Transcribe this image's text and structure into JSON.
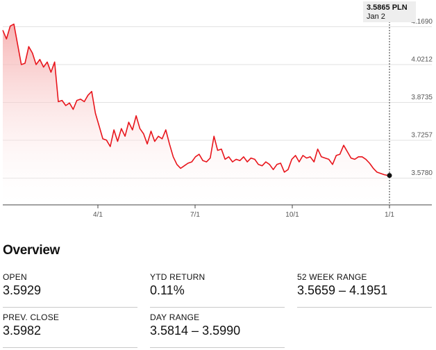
{
  "chart_data": {
    "type": "area",
    "currency": "PLN",
    "x_tick_labels": [
      "4/1",
      "7/1",
      "10/1",
      "1/1"
    ],
    "y_tick_labels": [
      "4.1690",
      "4.0212",
      "3.8735",
      "3.7257",
      "3.5780"
    ],
    "y_ticks": [
      4.169,
      4.0212,
      3.8735,
      3.7257,
      3.578
    ],
    "ylim": [
      3.48,
      4.205
    ],
    "x_range": [
      "Jan 2",
      "Jan 2 (next year)"
    ],
    "grid": "horizontal",
    "series": [
      {
        "x_index_range": [
          0,
          104
        ],
        "values": [
          4.154,
          4.12,
          4.17,
          4.178,
          4.1,
          4.02,
          4.025,
          4.09,
          4.065,
          4.02,
          4.04,
          4.01,
          4.03,
          3.99,
          4.03,
          3.875,
          3.88,
          3.86,
          3.87,
          3.845,
          3.88,
          3.885,
          3.875,
          3.9,
          3.915,
          3.83,
          3.78,
          3.73,
          3.725,
          3.7,
          3.765,
          3.72,
          3.77,
          3.74,
          3.795,
          3.765,
          3.82,
          3.77,
          3.75,
          3.71,
          3.76,
          3.72,
          3.74,
          3.73,
          3.765,
          3.71,
          3.66,
          3.63,
          3.615,
          3.625,
          3.635,
          3.64,
          3.66,
          3.67,
          3.645,
          3.64,
          3.655,
          3.74,
          3.685,
          3.69,
          3.65,
          3.66,
          3.64,
          3.65,
          3.645,
          3.66,
          3.64,
          3.655,
          3.65,
          3.63,
          3.625,
          3.64,
          3.63,
          3.61,
          3.63,
          3.635,
          3.6,
          3.61,
          3.65,
          3.665,
          3.64,
          3.665,
          3.655,
          3.66,
          3.64,
          3.69,
          3.66,
          3.655,
          3.65,
          3.63,
          3.665,
          3.67,
          3.705,
          3.68,
          3.655,
          3.65,
          3.66,
          3.66,
          3.65,
          3.635,
          3.615,
          3.6,
          3.595,
          3.59,
          3.587
        ]
      }
    ],
    "last_point": {
      "value": "3.5865",
      "date": "Jan 2"
    }
  },
  "tooltip": {
    "price": "3.5865 PLN",
    "date": "Jan 2"
  },
  "overview": {
    "title": "Overview",
    "stats": [
      {
        "label": "OPEN",
        "value": "3.5929"
      },
      {
        "label": "YTD RETURN",
        "value": "0.11%"
      },
      {
        "label": "52 WEEK RANGE",
        "value": "3.5659 – 4.1951"
      },
      {
        "label": "PREV. CLOSE",
        "value": "3.5982"
      },
      {
        "label": "DAY RANGE",
        "value": "3.5814 – 3.5990"
      }
    ]
  },
  "colors": {
    "line": "#e8141b",
    "area_top": "#f5a7a7",
    "area_bottom": "#ffffff",
    "grid": "#e2e2e2",
    "axis": "#444444",
    "tooltip_bg": "#eeeeee"
  }
}
